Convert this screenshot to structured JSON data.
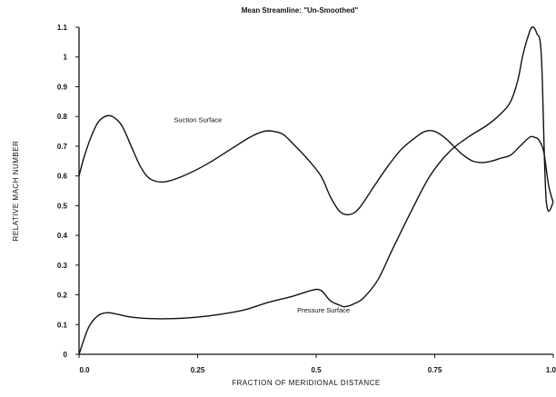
{
  "chart_data": {
    "type": "line",
    "title": "",
    "subtitle": "Mean Streamline: \"Un-Smoothed\"",
    "xlabel": "FRACTION OF MERIDIONAL DISTANCE",
    "ylabel": "RELATIVE MACH NUMBER",
    "xlim": [
      0,
      1.0
    ],
    "ylim": [
      0,
      1.1
    ],
    "x_ticks": [
      0.0,
      0.25,
      0.5,
      0.75,
      1.0
    ],
    "x_tick_labels": [
      "0.0",
      "0.25",
      "0.5",
      "0.75",
      "1.0"
    ],
    "y_ticks": [
      0,
      0.1,
      0.2,
      0.3,
      0.4,
      0.5,
      0.6,
      0.7,
      0.8,
      0.9,
      1,
      1.1
    ],
    "y_tick_labels": [
      "0",
      "0.1",
      "0.2",
      "0.3",
      "0.4",
      "0.5",
      "0.6",
      "0.7",
      "0.8",
      "0.9",
      "1",
      "1.1"
    ],
    "grid": false,
    "legend": "none",
    "series": [
      {
        "name": "Suction Surface",
        "label_at": [
          0.2,
          0.78
        ],
        "x": [
          0.0,
          0.01,
          0.025,
          0.04,
          0.055,
          0.07,
          0.09,
          0.11,
          0.13,
          0.15,
          0.18,
          0.22,
          0.27,
          0.32,
          0.36,
          0.39,
          0.41,
          0.43,
          0.45,
          0.48,
          0.51,
          0.53,
          0.55,
          0.57,
          0.59,
          0.62,
          0.65,
          0.68,
          0.71,
          0.73,
          0.75,
          0.77,
          0.79,
          0.81,
          0.83,
          0.85,
          0.87,
          0.89,
          0.91,
          0.93,
          0.95,
          0.96,
          0.97,
          0.98,
          0.99,
          1.0
        ],
        "y": [
          0.6,
          0.66,
          0.73,
          0.78,
          0.8,
          0.8,
          0.77,
          0.7,
          0.63,
          0.59,
          0.58,
          0.6,
          0.64,
          0.69,
          0.73,
          0.75,
          0.75,
          0.74,
          0.71,
          0.66,
          0.6,
          0.53,
          0.48,
          0.47,
          0.49,
          0.56,
          0.63,
          0.69,
          0.73,
          0.75,
          0.75,
          0.73,
          0.7,
          0.67,
          0.65,
          0.645,
          0.65,
          0.66,
          0.67,
          0.7,
          0.73,
          0.73,
          0.72,
          0.68,
          0.57,
          0.51
        ]
      },
      {
        "name": "Pressure Surface",
        "label_at": [
          0.46,
          0.14
        ],
        "x": [
          0.0,
          0.02,
          0.04,
          0.06,
          0.08,
          0.11,
          0.15,
          0.2,
          0.25,
          0.3,
          0.35,
          0.4,
          0.45,
          0.49,
          0.51,
          0.53,
          0.55,
          0.56,
          0.58,
          0.6,
          0.63,
          0.66,
          0.7,
          0.74,
          0.78,
          0.82,
          0.86,
          0.89,
          0.91,
          0.925,
          0.935,
          0.945,
          0.955,
          0.965,
          0.975,
          0.985,
          1.0
        ],
        "y": [
          0.0,
          0.09,
          0.13,
          0.14,
          0.135,
          0.125,
          0.12,
          0.12,
          0.125,
          0.135,
          0.15,
          0.175,
          0.195,
          0.215,
          0.215,
          0.18,
          0.165,
          0.16,
          0.17,
          0.19,
          0.25,
          0.35,
          0.48,
          0.6,
          0.68,
          0.73,
          0.77,
          0.81,
          0.85,
          0.92,
          1.0,
          1.06,
          1.1,
          1.08,
          1.0,
          0.52,
          0.51
        ]
      }
    ]
  }
}
